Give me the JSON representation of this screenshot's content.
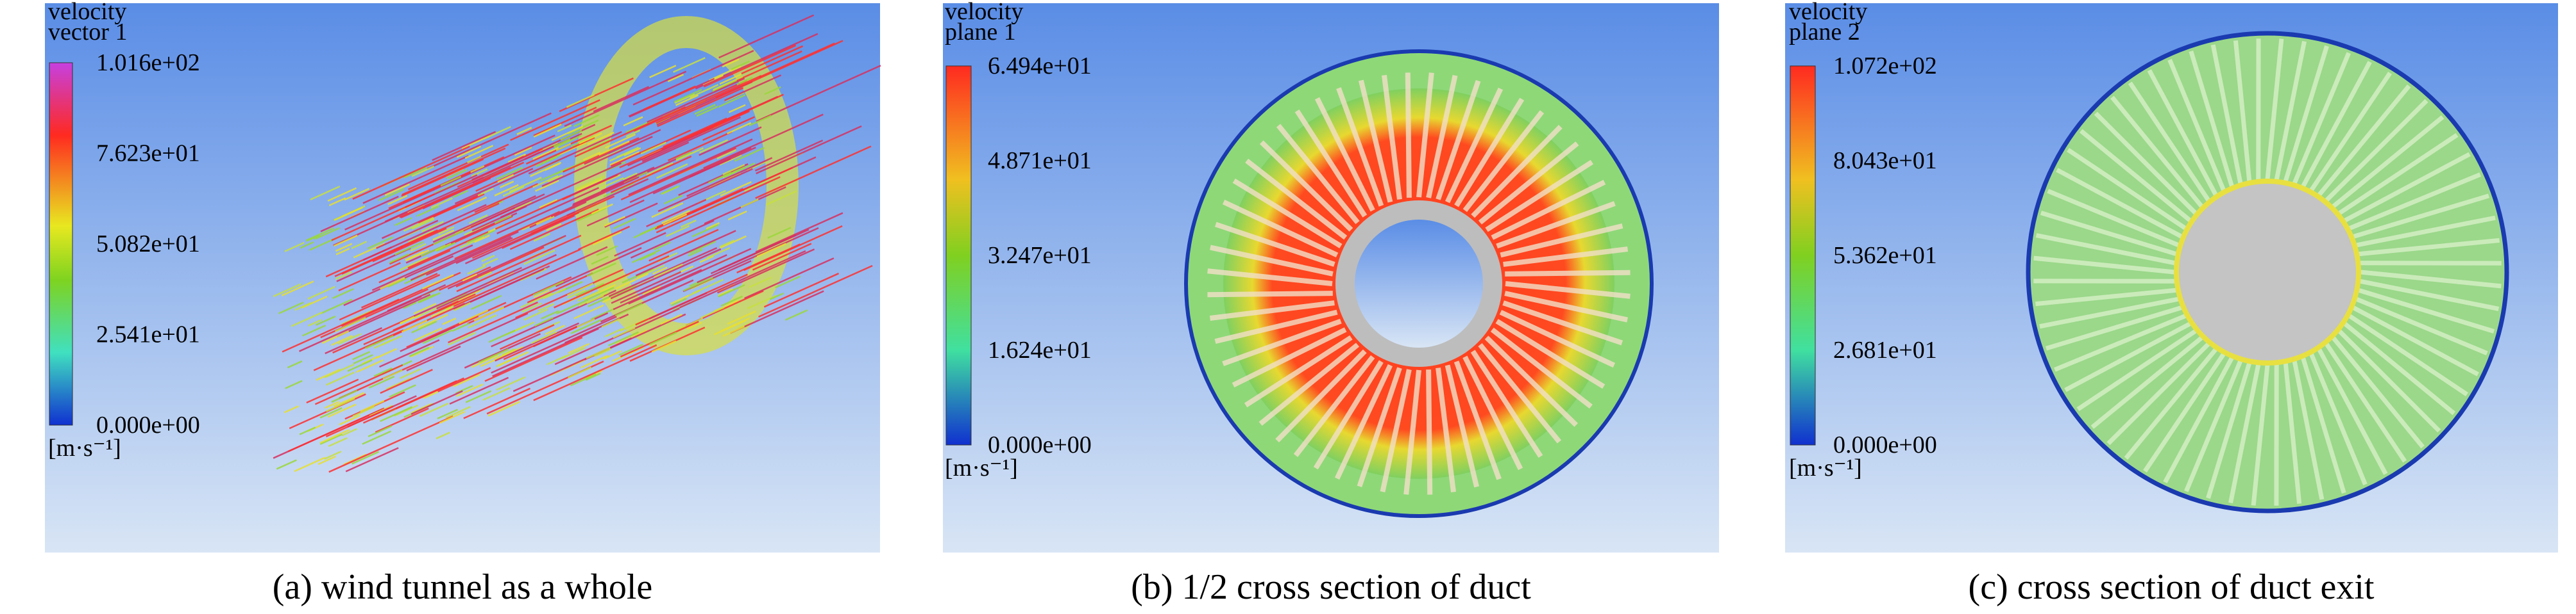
{
  "panels": [
    {
      "legend": {
        "title": [
          "velocity",
          "vector 1"
        ],
        "ticks": [
          "1.016e+02",
          "7.623e+01",
          "5.082e+01",
          "2.541e+01",
          "0.000e+00"
        ],
        "unit": "[m·s⁻¹]"
      },
      "caption": "(a) wind tunnel as a whole"
    },
    {
      "legend": {
        "title": [
          "velocity",
          "plane 1"
        ],
        "ticks": [
          "6.494e+01",
          "4.871e+01",
          "3.247e+01",
          "1.624e+01",
          "0.000e+00"
        ],
        "unit": "[m·s⁻¹]"
      },
      "caption": "(b) 1/2 cross section of duct"
    },
    {
      "legend": {
        "title": [
          "velocity",
          "plane 2"
        ],
        "ticks": [
          "1.072e+02",
          "8.043e+01",
          "5.362e+01",
          "2.681e+01",
          "0.000e+00"
        ],
        "unit": "[m·s⁻¹]"
      },
      "caption": "(c) cross section of duct exit"
    }
  ]
}
